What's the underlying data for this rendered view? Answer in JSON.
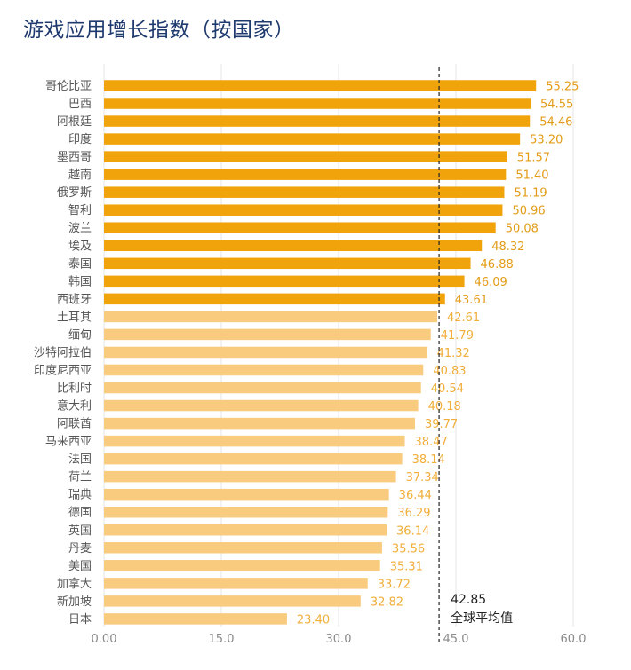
{
  "title": "游戏应用增长指数（按国家）",
  "colors": {
    "above_avg_bar": "#f0a30a",
    "below_avg_bar": "#f8cb7f",
    "above_avg_label": "#e39c17",
    "below_avg_label": "#f1ae3a",
    "grid": "#e6e6e6",
    "avg_line": "#222222"
  },
  "chart_data": {
    "type": "bar",
    "orientation": "horizontal",
    "categories": [
      "哥伦比亚",
      "巴西",
      "阿根廷",
      "印度",
      "墨西哥",
      "越南",
      "俄罗斯",
      "智利",
      "波兰",
      "埃及",
      "泰国",
      "韩国",
      "西班牙",
      "土耳其",
      "缅甸",
      "沙特阿拉伯",
      "印度尼西亚",
      "比利时",
      "意大利",
      "阿联酋",
      "马来西亚",
      "法国",
      "荷兰",
      "瑞典",
      "德国",
      "英国",
      "丹麦",
      "美国",
      "加拿大",
      "新加坡",
      "日本"
    ],
    "values": [
      55.25,
      54.55,
      54.46,
      53.2,
      51.57,
      51.4,
      51.19,
      50.96,
      50.08,
      48.32,
      46.88,
      46.09,
      43.61,
      42.61,
      41.79,
      41.32,
      40.83,
      40.54,
      40.18,
      39.77,
      38.47,
      38.14,
      37.34,
      36.44,
      36.29,
      36.14,
      35.56,
      35.31,
      33.72,
      32.82,
      23.4
    ],
    "value_labels": [
      "55.25",
      "54.55",
      "54.46",
      "53.20",
      "51.57",
      "51.40",
      "51.19",
      "50.96",
      "50.08",
      "48.32",
      "46.88",
      "46.09",
      "43.61",
      "42.61",
      "41.79",
      "41.32",
      "40.83",
      "40.54",
      "40.18",
      "39.77",
      "38.47",
      "38.14",
      "37.34",
      "36.44",
      "36.29",
      "36.14",
      "35.56",
      "35.31",
      "33.72",
      "32.82",
      "23.40"
    ],
    "xlim": [
      0,
      60
    ],
    "x_ticks": [
      0,
      15,
      30,
      45,
      60
    ],
    "x_tick_labels": [
      "0.00",
      "15.0",
      "30.0",
      "45.0",
      "60.0"
    ],
    "grid": true,
    "reference_line": {
      "value": 42.85,
      "value_label": "42.85",
      "label": "全球平均值"
    }
  }
}
